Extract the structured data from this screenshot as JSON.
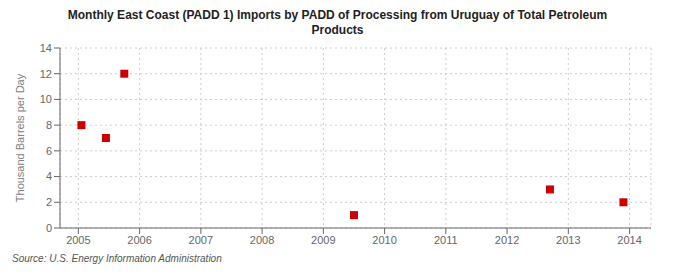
{
  "chart_data": {
    "type": "scatter",
    "title": "Monthly East Coast (PADD 1) Imports by PADD of Processing from Uruguay of Total Petroleum\nProducts",
    "ylabel": "Thousand Barrels per Day",
    "annotations": [
      "Source: U.S. Energy Information Administration"
    ],
    "x": [
      2005.05,
      2005.45,
      2005.75,
      2009.5,
      2012.7,
      2013.9
    ],
    "values": [
      8,
      7,
      12,
      1,
      3,
      2
    ],
    "color": "#cc0000",
    "marker": "square",
    "xlim": [
      2004.7,
      2014.35
    ],
    "ylim": [
      0,
      14
    ],
    "xticks": [
      2005,
      2006,
      2007,
      2008,
      2009,
      2010,
      2011,
      2012,
      2013,
      2014
    ],
    "yticks": [
      0,
      2,
      4,
      6,
      8,
      10,
      12,
      14
    ],
    "grid": true
  }
}
